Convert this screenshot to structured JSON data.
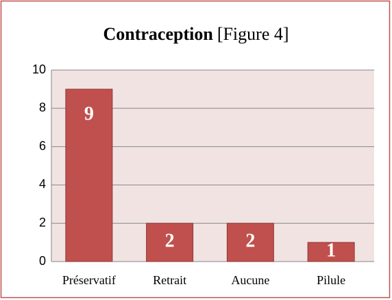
{
  "chart_data": {
    "type": "bar",
    "title": "Contraception",
    "subtitle": "[Figure 4]",
    "categories": [
      "Préservatif",
      "Retrait",
      "Aucune",
      "Pilule"
    ],
    "values": [
      9,
      2,
      2,
      1
    ],
    "color": "#c0504d",
    "ylim": [
      0,
      10
    ],
    "yticks": [
      0,
      2,
      4,
      6,
      8,
      10
    ],
    "grid": true
  }
}
